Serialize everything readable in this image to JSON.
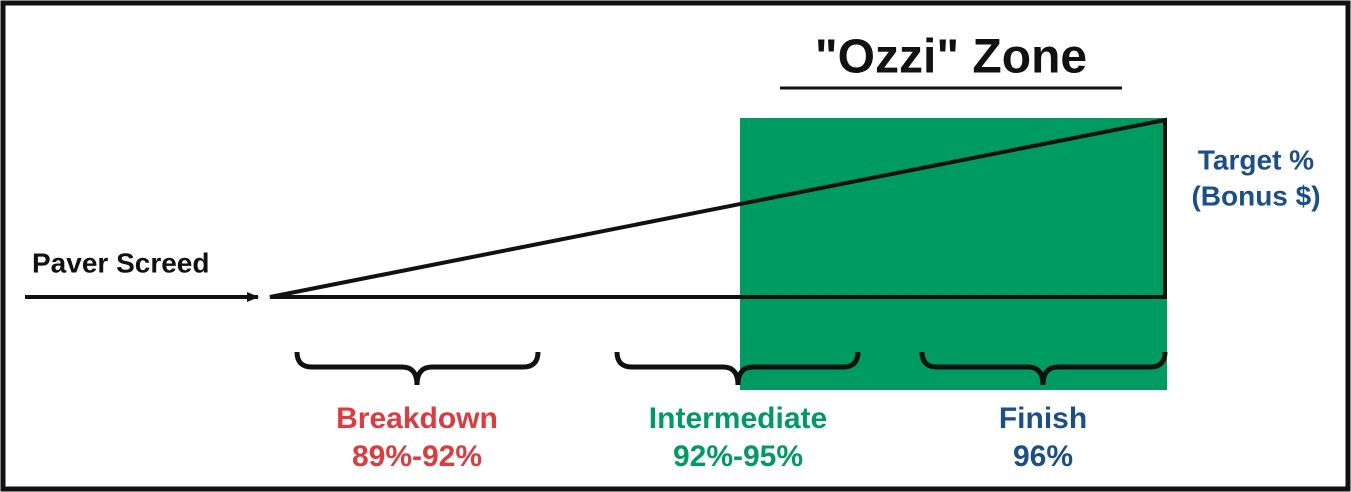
{
  "title": "\"Ozzi\" Zone",
  "input_label": "Paver Screed",
  "target": {
    "line1": "Target %",
    "line2": "(Bonus $)"
  },
  "zones": [
    {
      "name": "Breakdown",
      "range": "89%-92%"
    },
    {
      "name": "Intermediate",
      "range": "92%-95%"
    },
    {
      "name": "Finish",
      "range": "96%"
    }
  ]
}
